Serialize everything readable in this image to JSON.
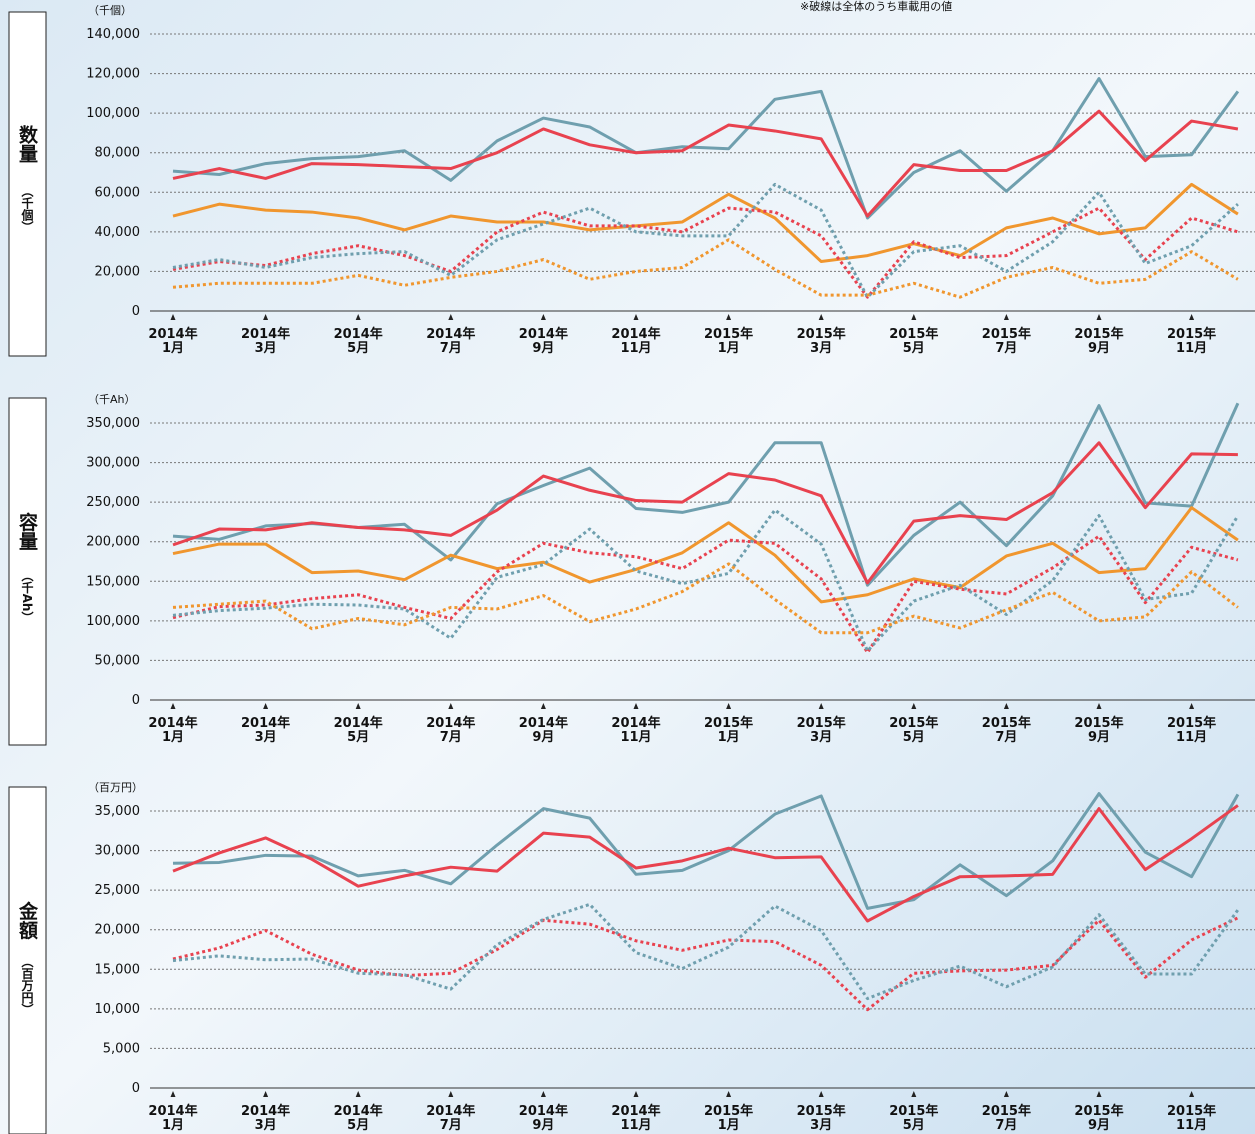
{
  "note": "※破線は全体のうち車載用の値",
  "chart_data": [
    {
      "type": "line",
      "title": "数量",
      "side_unit": "（千個）",
      "y_label": "（千個）",
      "categories": [
        [
          "2014年",
          "1月"
        ],
        null,
        [
          "2014年",
          "3月"
        ],
        null,
        [
          "2014年",
          "5月"
        ],
        null,
        [
          "2014年",
          "7月"
        ],
        null,
        [
          "2014年",
          "9月"
        ],
        null,
        [
          "2014年",
          "11月"
        ],
        null,
        [
          "2015年",
          "1月"
        ],
        null,
        [
          "2015年",
          "3月"
        ],
        null,
        [
          "2015年",
          "5月"
        ],
        null,
        [
          "2015年",
          "7月"
        ],
        null,
        [
          "2015年",
          "9月"
        ],
        null,
        [
          "2015年",
          "11月"
        ],
        null
      ],
      "ylim": [
        0,
        140000
      ],
      "yticks": [
        0,
        {
          "value": 20000,
          "label": "20,000"
        },
        {
          "value": 40000,
          "label": "40,000"
        },
        {
          "value": 60000,
          "label": "60,000"
        },
        {
          "value": 80000,
          "label": "80,000"
        },
        {
          "value": 100000,
          "label": "100,000"
        },
        {
          "value": 120000,
          "label": "120,000"
        },
        {
          "value": 140000,
          "label": "140,000"
        }
      ],
      "grid": true,
      "series": [
        {
          "color": "#6f9fae",
          "dash": false,
          "values": [
            70700,
            69000,
            74500,
            77000,
            78000,
            81000,
            66000,
            86000,
            97500,
            93000,
            80000,
            83000,
            82000,
            107000,
            111000,
            47000,
            70000,
            81000,
            60500,
            81000,
            117500,
            78000,
            79000,
            111000
          ]
        },
        {
          "color": "#e8424f",
          "dash": false,
          "values": [
            67000,
            72000,
            67000,
            74500,
            74000,
            73000,
            72000,
            80000,
            92000,
            84000,
            80000,
            81000,
            94000,
            91000,
            87000,
            48000,
            74000,
            71000,
            71000,
            81000,
            101000,
            76000,
            96000,
            92000
          ]
        },
        {
          "color": "#f0962e",
          "dash": false,
          "values": [
            48000,
            54000,
            51000,
            50000,
            47000,
            41000,
            48000,
            45000,
            45000,
            41000,
            43000,
            45000,
            59000,
            47000,
            25000,
            28000,
            34000,
            28000,
            42000,
            47000,
            39000,
            42000,
            64000,
            49000
          ]
        },
        {
          "color": "#e8424f",
          "dash": true,
          "values": [
            21000,
            25000,
            23000,
            29000,
            33000,
            28000,
            20000,
            40000,
            50000,
            43000,
            43000,
            40000,
            52000,
            50000,
            38000,
            7000,
            35000,
            27000,
            28000,
            40000,
            52000,
            26000,
            47000,
            40000
          ]
        },
        {
          "color": "#6f9fae",
          "dash": true,
          "values": [
            22000,
            26000,
            22000,
            27000,
            29000,
            30000,
            18000,
            36000,
            44000,
            52000,
            40000,
            38000,
            38000,
            64000,
            51000,
            7000,
            30000,
            33000,
            20000,
            35000,
            60000,
            24000,
            33000,
            54000
          ]
        },
        {
          "color": "#f0962e",
          "dash": true,
          "values": [
            12000,
            14000,
            14000,
            14000,
            18000,
            13000,
            17000,
            20000,
            26000,
            16000,
            20000,
            22000,
            36000,
            21000,
            8000,
            8000,
            14000,
            7000,
            17000,
            22000,
            14000,
            16000,
            30000,
            16000
          ]
        }
      ]
    },
    {
      "type": "line",
      "title": "容量",
      "side_unit": "（千Ah）",
      "y_label": "（千Ah）",
      "categories": [
        [
          "2014年",
          "1月"
        ],
        null,
        [
          "2014年",
          "3月"
        ],
        null,
        [
          "2014年",
          "5月"
        ],
        null,
        [
          "2014年",
          "7月"
        ],
        null,
        [
          "2014年",
          "9月"
        ],
        null,
        [
          "2014年",
          "11月"
        ],
        null,
        [
          "2015年",
          "1月"
        ],
        null,
        [
          "2015年",
          "3月"
        ],
        null,
        [
          "2015年",
          "5月"
        ],
        null,
        [
          "2015年",
          "7月"
        ],
        null,
        [
          "2015年",
          "9月"
        ],
        null,
        [
          "2015年",
          "11月"
        ],
        null
      ],
      "ylim": [
        0,
        350000
      ],
      "yticks": [
        0,
        {
          "value": 50000,
          "label": "50,000"
        },
        {
          "value": 100000,
          "label": "100,000"
        },
        {
          "value": 150000,
          "label": "150,000"
        },
        {
          "value": 200000,
          "label": "200,000"
        },
        {
          "value": 250000,
          "label": "250,000"
        },
        {
          "value": 300000,
          "label": "300,000"
        },
        {
          "value": 350000,
          "label": "350,000"
        }
      ],
      "grid": true,
      "series": [
        {
          "color": "#6f9fae",
          "dash": false,
          "values": [
            207000,
            203000,
            220000,
            223000,
            218000,
            222000,
            177000,
            248000,
            271000,
            293000,
            242000,
            237000,
            250000,
            325000,
            325000,
            145000,
            208000,
            250000,
            195000,
            258000,
            372000,
            249000,
            245000,
            375000
          ]
        },
        {
          "color": "#e8424f",
          "dash": false,
          "values": [
            196000,
            216000,
            215000,
            224000,
            218000,
            215000,
            208000,
            240000,
            283000,
            265000,
            252000,
            250000,
            286000,
            278000,
            258000,
            148000,
            226000,
            233000,
            228000,
            262000,
            325000,
            243000,
            311000,
            310000
          ]
        },
        {
          "color": "#f0962e",
          "dash": false,
          "values": [
            185000,
            197000,
            197000,
            161000,
            163000,
            152000,
            183000,
            166000,
            174000,
            149000,
            165000,
            186000,
            224000,
            183000,
            124000,
            133000,
            153000,
            142000,
            182000,
            198000,
            161000,
            166000,
            243000,
            202000
          ]
        },
        {
          "color": "#e8424f",
          "dash": true,
          "values": [
            104000,
            118000,
            120000,
            128000,
            133000,
            117000,
            103000,
            162000,
            198000,
            186000,
            181000,
            166000,
            202000,
            198000,
            153000,
            60000,
            150000,
            140000,
            134000,
            167000,
            207000,
            123000,
            193000,
            177000
          ]
        },
        {
          "color": "#6f9fae",
          "dash": true,
          "values": [
            107000,
            113000,
            116000,
            121000,
            120000,
            115000,
            78000,
            155000,
            171000,
            216000,
            163000,
            147000,
            160000,
            240000,
            197000,
            62000,
            125000,
            145000,
            108000,
            151000,
            233000,
            127000,
            135000,
            233000
          ]
        },
        {
          "color": "#f0962e",
          "dash": true,
          "values": [
            117000,
            121000,
            125000,
            90000,
            103000,
            95000,
            117000,
            115000,
            132000,
            99000,
            115000,
            137000,
            172000,
            127000,
            85000,
            85000,
            106000,
            91000,
            114000,
            136000,
            100000,
            105000,
            162000,
            117000
          ]
        }
      ]
    },
    {
      "type": "line",
      "title": "金額",
      "side_unit": "（百万円）",
      "y_label": "（百万円）",
      "categories": [
        [
          "2014年",
          "1月"
        ],
        null,
        [
          "2014年",
          "3月"
        ],
        null,
        [
          "2014年",
          "5月"
        ],
        null,
        [
          "2014年",
          "7月"
        ],
        null,
        [
          "2014年",
          "9月"
        ],
        null,
        [
          "2014年",
          "11月"
        ],
        null,
        [
          "2015年",
          "1月"
        ],
        null,
        [
          "2015年",
          "3月"
        ],
        null,
        [
          "2015年",
          "5月"
        ],
        null,
        [
          "2015年",
          "7月"
        ],
        null,
        [
          "2015年",
          "9月"
        ],
        null,
        [
          "2015年",
          "11月"
        ],
        null
      ],
      "ylim": [
        0,
        35000
      ],
      "yticks": [
        0,
        {
          "value": 5000,
          "label": "5,000"
        },
        {
          "value": 10000,
          "label": "10,000"
        },
        {
          "value": 15000,
          "label": "15,000"
        },
        {
          "value": 20000,
          "label": "20,000"
        },
        {
          "value": 25000,
          "label": "25,000"
        },
        {
          "value": 30000,
          "label": "30,000"
        },
        {
          "value": 35000,
          "label": "35,000"
        }
      ],
      "grid": true,
      "series": [
        {
          "color": "#6f9fae",
          "dash": false,
          "values": [
            28400,
            28500,
            29400,
            29300,
            26800,
            27500,
            25800,
            30700,
            35300,
            34100,
            27000,
            27500,
            30000,
            34600,
            36900,
            22700,
            23800,
            28200,
            24300,
            28700,
            37200,
            29800,
            26700,
            37100
          ]
        },
        {
          "color": "#e8424f",
          "dash": false,
          "values": [
            27400,
            29700,
            31600,
            28900,
            25500,
            26800,
            27900,
            27400,
            32200,
            31700,
            27800,
            28700,
            30300,
            29100,
            29200,
            21100,
            24200,
            26700,
            26800,
            27000,
            35300,
            27600,
            31500,
            35700
          ]
        },
        {
          "color": "#e8424f",
          "dash": true,
          "values": [
            16300,
            17700,
            19900,
            16900,
            14900,
            14200,
            14500,
            17500,
            21200,
            20700,
            18600,
            17400,
            18700,
            18500,
            15500,
            9900,
            14500,
            14800,
            14900,
            15500,
            21200,
            14000,
            18700,
            21500
          ]
        },
        {
          "color": "#6f9fae",
          "dash": true,
          "values": [
            16100,
            16700,
            16200,
            16300,
            14500,
            14300,
            12500,
            18100,
            21300,
            23200,
            17100,
            15100,
            17800,
            23000,
            19900,
            11300,
            13600,
            15400,
            12800,
            15300,
            21900,
            14400,
            14400,
            22500
          ]
        }
      ]
    }
  ]
}
